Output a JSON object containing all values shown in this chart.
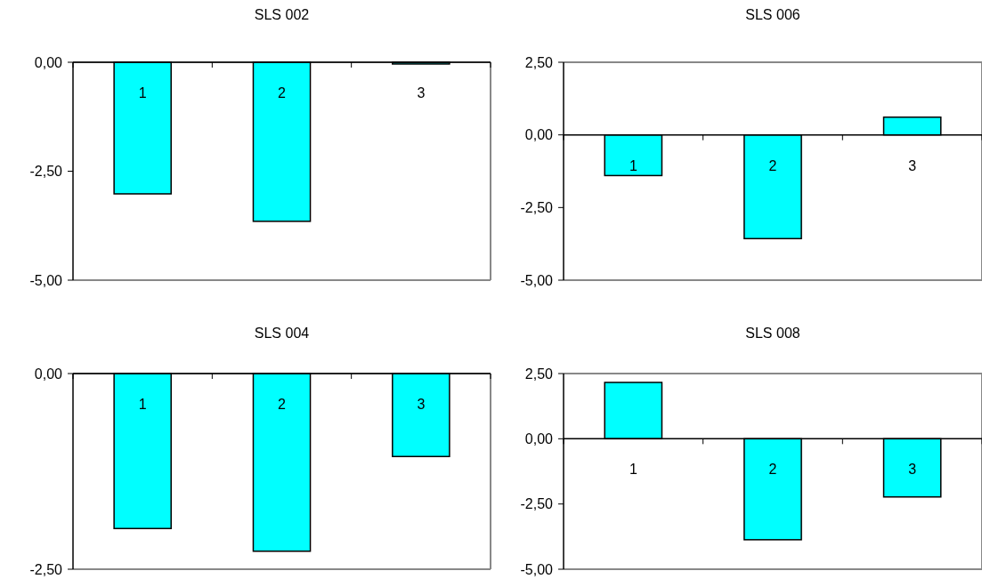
{
  "chart_data": [
    {
      "type": "bar",
      "title": "SLS 002",
      "categories": [
        "1",
        "2",
        "3"
      ],
      "values": [
        -3.02,
        -3.65,
        -0.04
      ],
      "color": "#00ffff",
      "ylim": [
        -5,
        0
      ],
      "yticks": [
        {
          "value": -5,
          "label": "-5,00"
        },
        {
          "value": -2.5,
          "label": "-2,50"
        },
        {
          "value": 0,
          "label": "0,00"
        }
      ]
    },
    {
      "type": "bar",
      "title": "SLS 006",
      "categories": [
        "1",
        "2",
        "3"
      ],
      "values": [
        -1.4,
        -3.57,
        0.61
      ],
      "color": "#00ffff",
      "ylim": [
        -5,
        2.5
      ],
      "yticks": [
        {
          "value": -5,
          "label": "-5,00"
        },
        {
          "value": -2.5,
          "label": "-2,50"
        },
        {
          "value": 0,
          "label": "0,00"
        },
        {
          "value": 2.5,
          "label": "2,50"
        }
      ]
    },
    {
      "type": "bar",
      "title": "SLS 004",
      "categories": [
        "1",
        "2",
        "3"
      ],
      "values": [
        -1.98,
        -2.27,
        -1.06
      ],
      "color": "#00ffff",
      "ylim": [
        -2.5,
        0
      ],
      "yticks": [
        {
          "value": -2.5,
          "label": "-2,50"
        },
        {
          "value": 0,
          "label": "0,00"
        }
      ]
    },
    {
      "type": "bar",
      "title": "SLS 008",
      "categories": [
        "1",
        "2",
        "3"
      ],
      "values": [
        2.16,
        -3.87,
        -2.23
      ],
      "color": "#00ffff",
      "ylim": [
        -5,
        2.5
      ],
      "yticks": [
        {
          "value": -5,
          "label": "-5,00"
        },
        {
          "value": -2.5,
          "label": "-2,50"
        },
        {
          "value": 0,
          "label": "0,00"
        },
        {
          "value": 2.5,
          "label": "2,50"
        }
      ]
    }
  ]
}
